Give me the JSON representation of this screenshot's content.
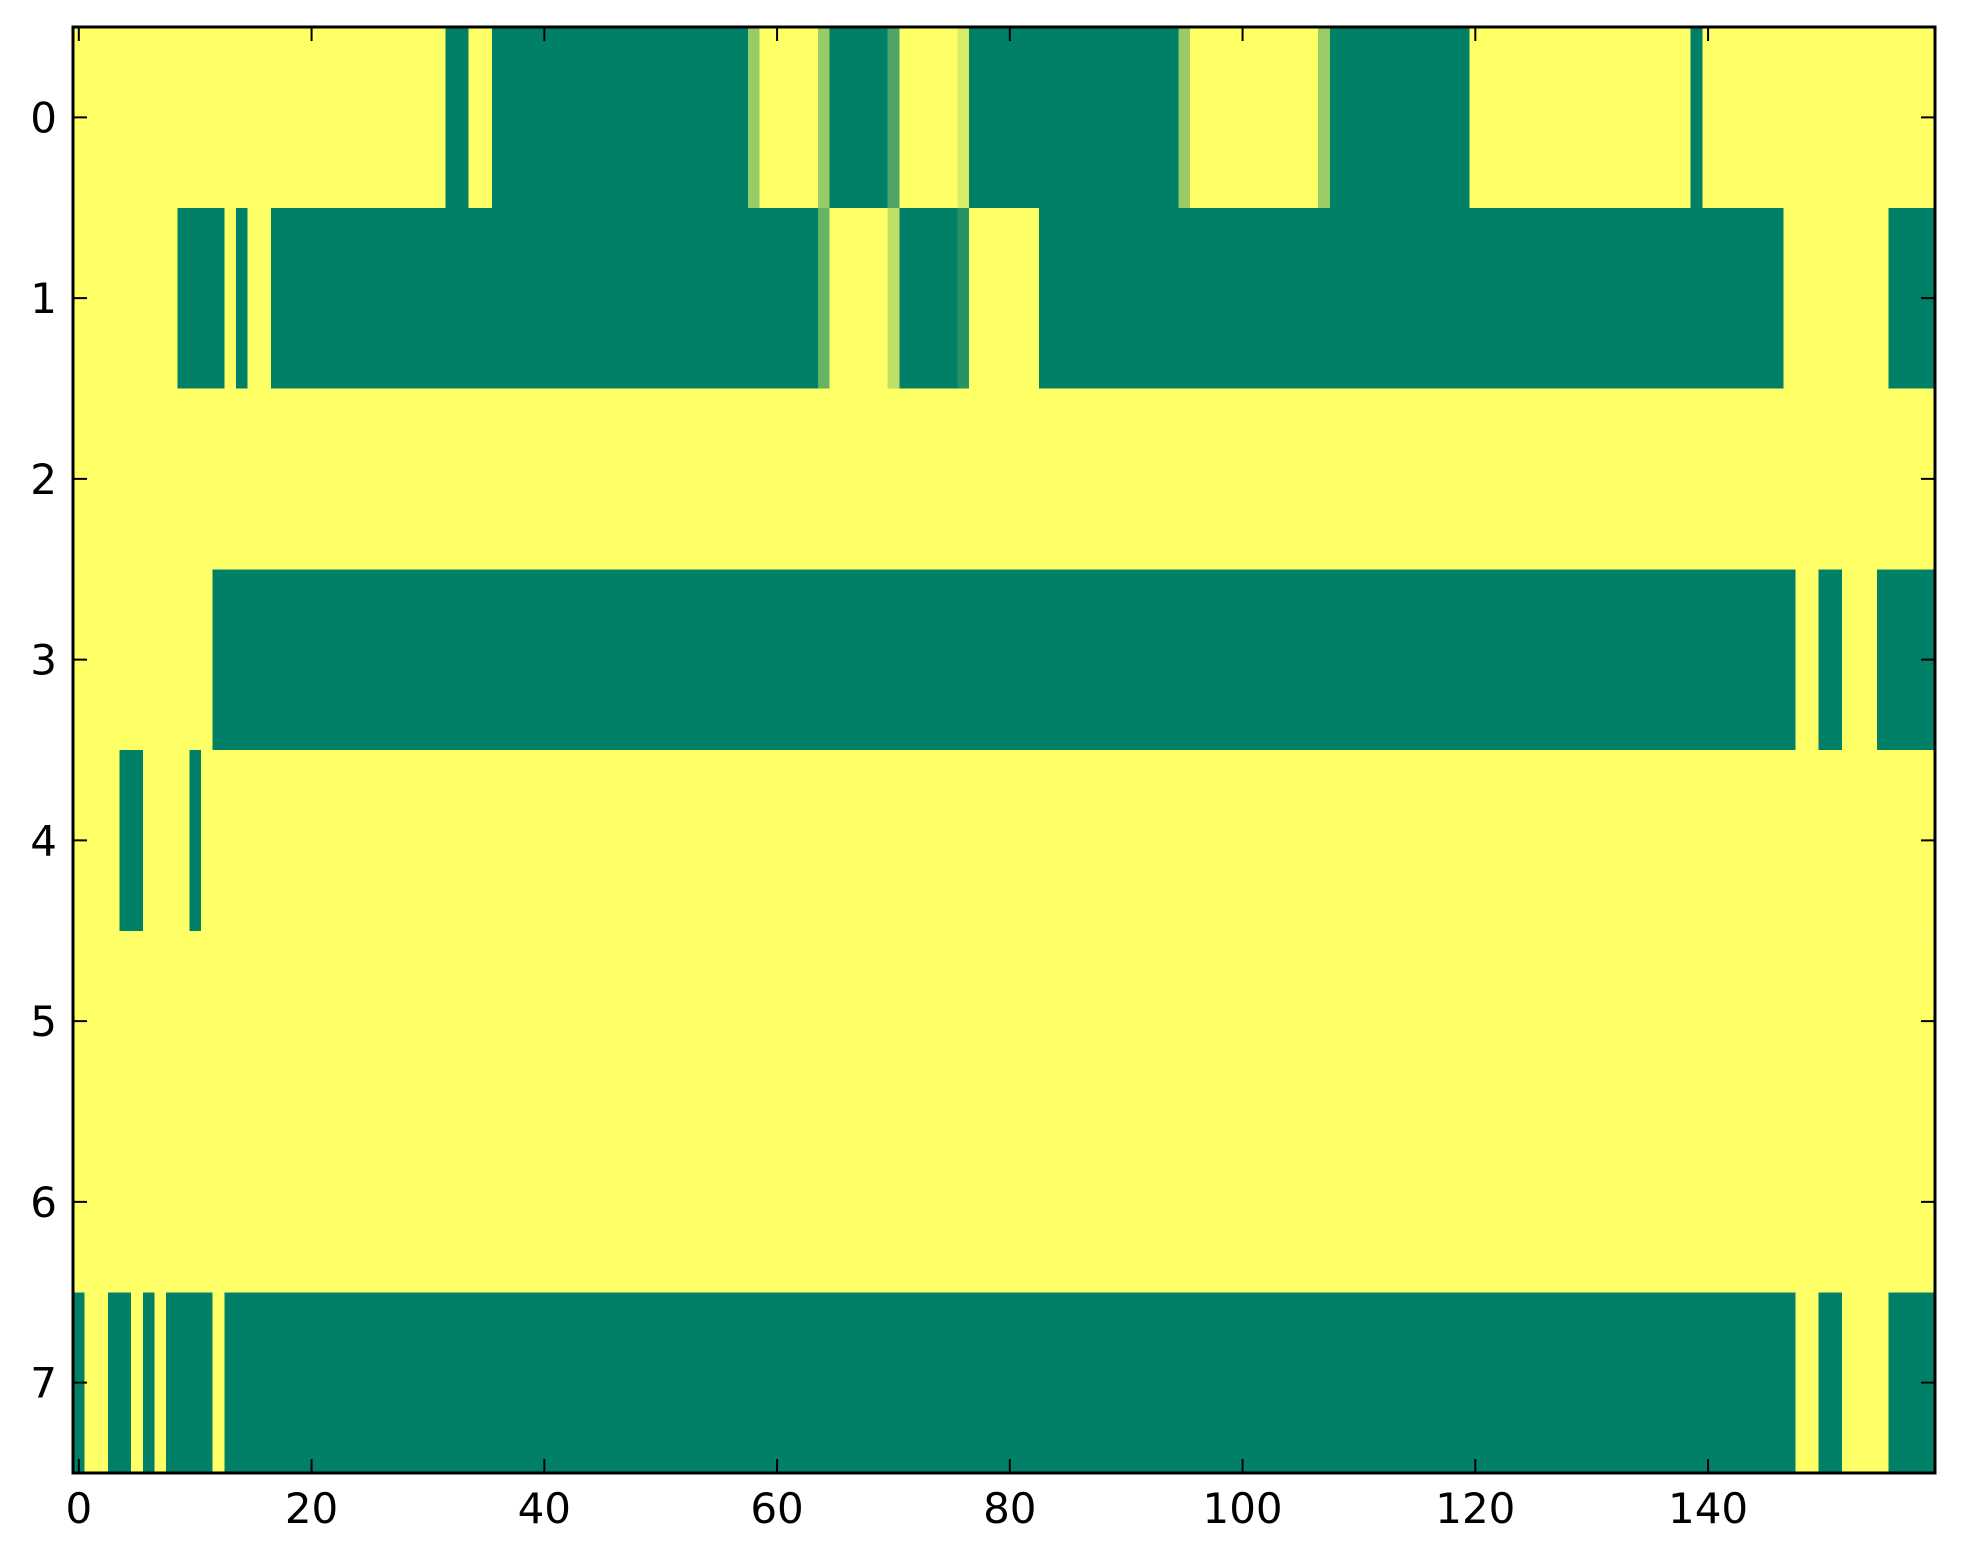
{
  "chart_data": {
    "type": "heatmap",
    "title": "",
    "xlabel": "",
    "ylabel": "",
    "n_columns": 160,
    "rows": [
      0,
      1,
      2,
      3,
      4,
      5,
      6,
      7
    ],
    "xlim": [
      -0.5,
      159.5
    ],
    "ylim": [
      7.5,
      -0.5
    ],
    "x_ticks": [
      0,
      20,
      40,
      60,
      80,
      100,
      120,
      140
    ],
    "y_ticks": [
      0,
      1,
      2,
      3,
      4,
      5,
      6,
      7
    ],
    "colormap": "summer",
    "colors": {
      "low": "#008066",
      "high": "#ffff66",
      "background": "#ffff66"
    },
    "value_range": [
      0,
      1
    ],
    "default_value": 1,
    "low_value_segments": [
      {
        "row": 0,
        "start": 32,
        "end": 33,
        "value": 0
      },
      {
        "row": 0,
        "start": 36,
        "end": 57,
        "value": 0
      },
      {
        "row": 0,
        "start": 58,
        "end": 58,
        "value": 0.6
      },
      {
        "row": 0,
        "start": 64,
        "end": 64,
        "value": 0.6
      },
      {
        "row": 0,
        "start": 65,
        "end": 69,
        "value": 0
      },
      {
        "row": 0,
        "start": 70,
        "end": 70,
        "value": 0.3
      },
      {
        "row": 0,
        "start": 76,
        "end": 76,
        "value": 0.85
      },
      {
        "row": 0,
        "start": 77,
        "end": 94,
        "value": 0
      },
      {
        "row": 0,
        "start": 95,
        "end": 95,
        "value": 0.6
      },
      {
        "row": 0,
        "start": 107,
        "end": 107,
        "value": 0.6
      },
      {
        "row": 0,
        "start": 108,
        "end": 119,
        "value": 0
      },
      {
        "row": 0,
        "start": 139,
        "end": 139,
        "value": 0
      },
      {
        "row": 1,
        "start": 9,
        "end": 12,
        "value": 0
      },
      {
        "row": 1,
        "start": 14,
        "end": 14,
        "value": 0
      },
      {
        "row": 1,
        "start": 17,
        "end": 63,
        "value": 0
      },
      {
        "row": 1,
        "start": 64,
        "end": 64,
        "value": 0.4
      },
      {
        "row": 1,
        "start": 70,
        "end": 70,
        "value": 0.75
      },
      {
        "row": 1,
        "start": 71,
        "end": 75,
        "value": 0
      },
      {
        "row": 1,
        "start": 76,
        "end": 76,
        "value": 0.15
      },
      {
        "row": 1,
        "start": 83,
        "end": 146,
        "value": 0
      },
      {
        "row": 1,
        "start": 156,
        "end": 159,
        "value": 0
      },
      {
        "row": 3,
        "start": 12,
        "end": 147,
        "value": 0
      },
      {
        "row": 3,
        "start": 150,
        "end": 151,
        "value": 0
      },
      {
        "row": 3,
        "start": 155,
        "end": 159,
        "value": 0
      },
      {
        "row": 4,
        "start": 4,
        "end": 5,
        "value": 0
      },
      {
        "row": 4,
        "start": 10,
        "end": 10,
        "value": 0
      },
      {
        "row": 7,
        "start": 0,
        "end": 0,
        "value": 0
      },
      {
        "row": 7,
        "start": 3,
        "end": 4,
        "value": 0
      },
      {
        "row": 7,
        "start": 6,
        "end": 6,
        "value": 0
      },
      {
        "row": 7,
        "start": 8,
        "end": 11,
        "value": 0
      },
      {
        "row": 7,
        "start": 13,
        "end": 147,
        "value": 0
      },
      {
        "row": 7,
        "start": 150,
        "end": 151,
        "value": 0
      },
      {
        "row": 7,
        "start": 156,
        "end": 159,
        "value": 0
      }
    ]
  }
}
